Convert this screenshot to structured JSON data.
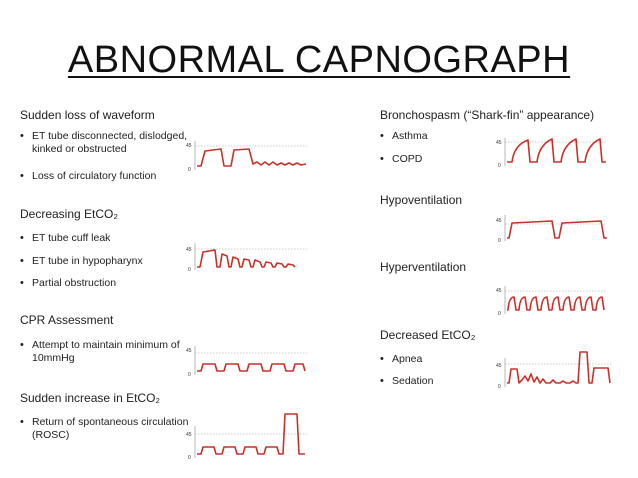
{
  "title": "ABNORMAL CAPNOGRAPH",
  "axis_labels": {
    "high": "45",
    "low": "0"
  },
  "colors": {
    "waveform": "#c8312a",
    "baseline": "#999999",
    "text": "#222222"
  },
  "sections": [
    {
      "heading": "Sudden loss of waveform",
      "bullets": [
        "ET tube disconnected, dislodged, kinked or obstructed",
        "Loss of circulatory function"
      ]
    },
    {
      "heading": "Decreasing EtCO₂",
      "bullets": [
        "ET tube cuff leak",
        "ET tube in hypopharynx",
        "Partial obstruction"
      ]
    },
    {
      "heading": "CPR Assessment",
      "bullets": [
        "Attempt to maintain minimum of 10mmHg"
      ]
    },
    {
      "heading": "Sudden increase in EtCO₂",
      "bullets": [
        "Return of spontaneous circulation (ROSC)"
      ]
    },
    {
      "heading": "Bronchospasm (“Shark-fin” appearance)",
      "bullets": [
        "Asthma",
        "COPD"
      ]
    },
    {
      "heading": "Hypoventilation",
      "bullets": []
    },
    {
      "heading": "Hyperventilation",
      "bullets": []
    },
    {
      "heading": "Decreased EtCO₂",
      "bullets": [
        "Apnea",
        "Sedation"
      ]
    }
  ]
}
